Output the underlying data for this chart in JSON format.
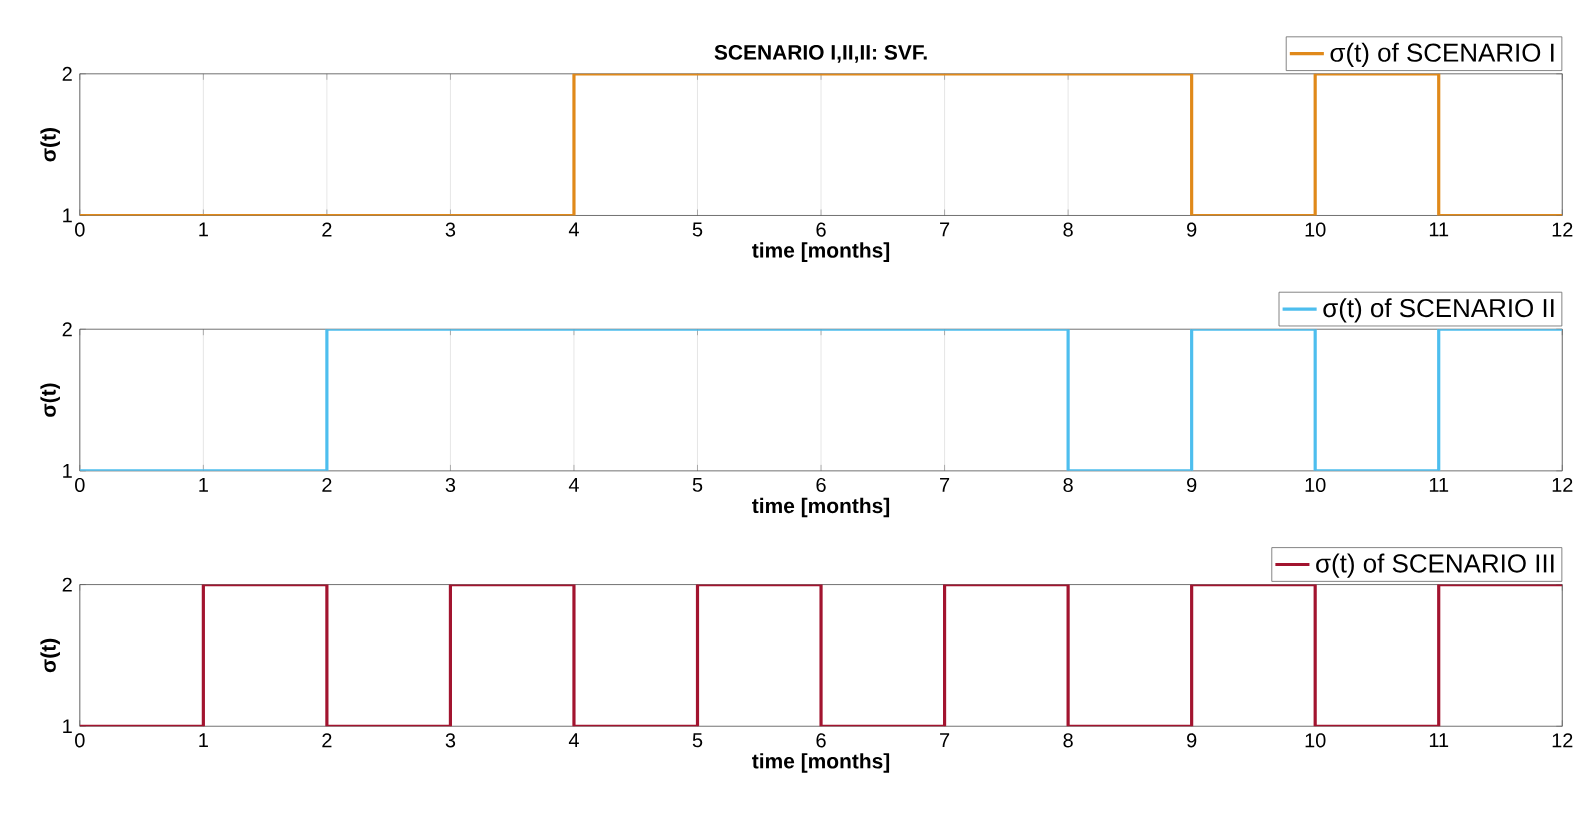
{
  "chart_data": [
    {
      "type": "step",
      "title": "SCENARIO I,II,II: SVF.",
      "xlabel": "time [months]",
      "ylabel": "σ(t)",
      "x": [
        0,
        1,
        2,
        3,
        4,
        5,
        6,
        7,
        8,
        9,
        10,
        11,
        12
      ],
      "xlim": [
        0,
        12
      ],
      "ylim": [
        1,
        2
      ],
      "xticks": [
        0,
        1,
        2,
        3,
        4,
        5,
        6,
        7,
        8,
        9,
        10,
        11,
        12
      ],
      "yticks": [
        1,
        2
      ],
      "grid": "x",
      "legend": "top right",
      "series": [
        {
          "name": "σ(t) of SCENARIO I",
          "color": "#e0891a",
          "values": [
            1,
            1,
            1,
            1,
            2,
            2,
            2,
            2,
            2,
            1,
            2,
            1,
            1
          ]
        }
      ]
    },
    {
      "type": "step",
      "xlabel": "time [months]",
      "ylabel": "σ(t)",
      "x": [
        0,
        1,
        2,
        3,
        4,
        5,
        6,
        7,
        8,
        9,
        10,
        11,
        12
      ],
      "xlim": [
        0,
        12
      ],
      "ylim": [
        1,
        2
      ],
      "xticks": [
        0,
        1,
        2,
        3,
        4,
        5,
        6,
        7,
        8,
        9,
        10,
        11,
        12
      ],
      "yticks": [
        1,
        2
      ],
      "grid": "x",
      "legend": "top right",
      "series": [
        {
          "name": "σ(t) of SCENARIO II",
          "color": "#4dbeee",
          "values": [
            1,
            1,
            2,
            2,
            2,
            2,
            2,
            2,
            1,
            2,
            1,
            2,
            2
          ]
        }
      ]
    },
    {
      "type": "step",
      "xlabel": "time [months]",
      "ylabel": "σ(t)",
      "x": [
        0,
        1,
        2,
        3,
        4,
        5,
        6,
        7,
        8,
        9,
        10,
        11,
        12
      ],
      "xlim": [
        0,
        12
      ],
      "ylim": [
        1,
        2
      ],
      "xticks": [
        0,
        1,
        2,
        3,
        4,
        5,
        6,
        7,
        8,
        9,
        10,
        11,
        12
      ],
      "yticks": [
        1,
        2
      ],
      "grid": "x",
      "legend": "top right",
      "series": [
        {
          "name": "σ(t) of SCENARIO III",
          "color": "#a2142f",
          "values": [
            1,
            2,
            1,
            2,
            1,
            2,
            1,
            2,
            1,
            2,
            1,
            2,
            2
          ]
        }
      ]
    }
  ]
}
